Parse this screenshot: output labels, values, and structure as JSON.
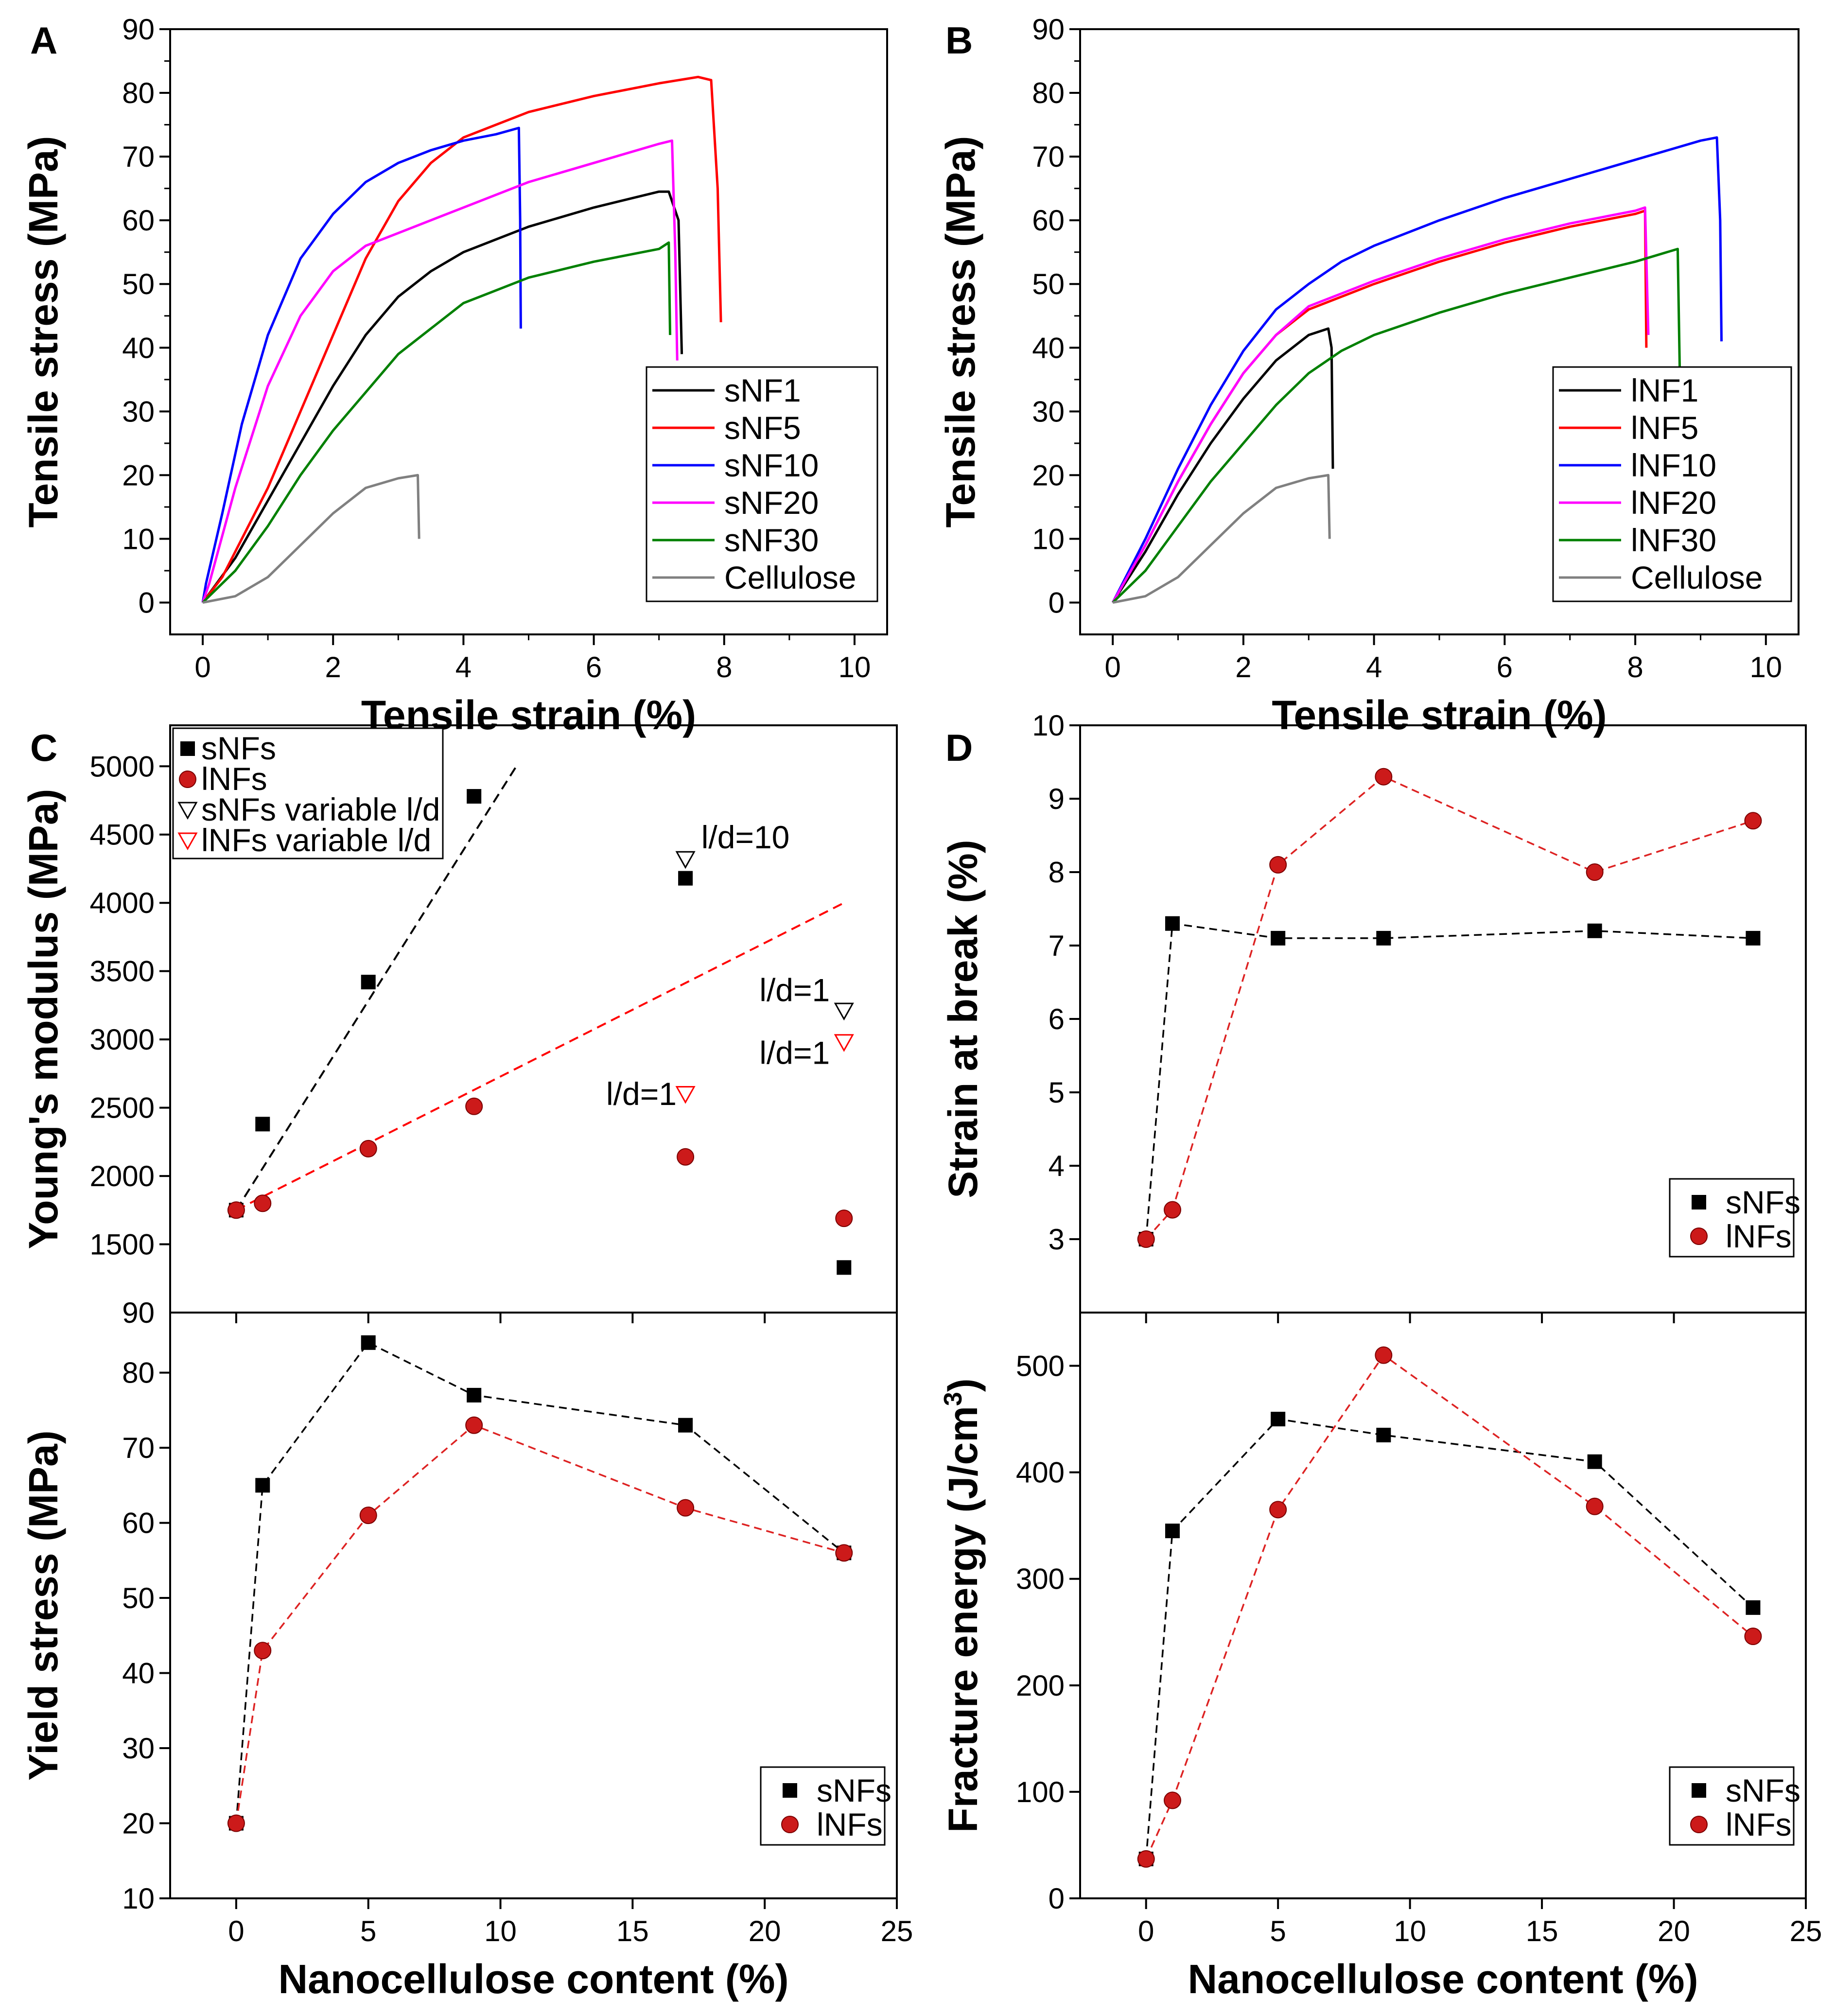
{
  "chart_data": [
    {
      "id": "A",
      "type": "line",
      "panel_label": "A",
      "xlabel": "Tensile strain (%)",
      "ylabel": "Tensile stress (MPa)",
      "xlim": [
        -0.5,
        10.5
      ],
      "ylim": [
        -5,
        90
      ],
      "xticks": [
        0,
        2,
        4,
        6,
        8,
        10
      ],
      "yticks": [
        0,
        10,
        20,
        30,
        40,
        50,
        60,
        70,
        80,
        90
      ],
      "legend_position": "bottom-right",
      "series": [
        {
          "name": "sNF1",
          "color": "#000000",
          "x": [
            0,
            0.5,
            1,
            1.5,
            2,
            2.5,
            3,
            3.5,
            4,
            5,
            6,
            7,
            7.15,
            7.3,
            7.35
          ],
          "y": [
            0,
            7,
            16,
            25,
            34,
            42,
            48,
            52,
            55,
            59,
            62,
            64.5,
            64.5,
            60,
            39
          ]
        },
        {
          "name": "sNF5",
          "color": "#ff0000",
          "x": [
            0,
            0.3,
            0.6,
            1,
            1.5,
            2,
            2.5,
            3,
            3.5,
            4,
            5,
            6,
            7,
            7.6,
            7.8,
            7.9,
            7.95
          ],
          "y": [
            0,
            4,
            10,
            18,
            30,
            42,
            54,
            63,
            69,
            73,
            77,
            79.5,
            81.5,
            82.5,
            82,
            65,
            44
          ]
        },
        {
          "name": "sNF10",
          "color": "#0000ff",
          "x": [
            0,
            0.05,
            0.3,
            0.6,
            1,
            1.5,
            2,
            2.5,
            3,
            3.5,
            4,
            4.5,
            4.85,
            4.87,
            4.88
          ],
          "y": [
            0,
            3,
            14,
            28,
            42,
            54,
            61,
            66,
            69,
            71,
            72.5,
            73.5,
            74.5,
            60,
            43
          ]
        },
        {
          "name": "sNF20",
          "color": "#ff00ff",
          "x": [
            0,
            0.1,
            0.5,
            1,
            1.5,
            2,
            2.5,
            3,
            4,
            5,
            6,
            7,
            7.2,
            7.25,
            7.28
          ],
          "y": [
            0,
            3,
            18,
            34,
            45,
            52,
            56,
            58,
            62,
            66,
            69,
            72,
            72.5,
            55,
            38
          ]
        },
        {
          "name": "sNF30",
          "color": "#008000",
          "x": [
            0,
            0.5,
            1,
            1.5,
            2,
            2.5,
            3,
            3.5,
            4,
            5,
            6,
            7,
            7.15,
            7.17
          ],
          "y": [
            0,
            5,
            12,
            20,
            27,
            33,
            39,
            43,
            47,
            51,
            53.5,
            55.5,
            56.5,
            42
          ]
        },
        {
          "name": "Cellulose",
          "color": "#808080",
          "x": [
            0,
            0.5,
            1,
            1.5,
            2,
            2.5,
            3,
            3.3,
            3.32
          ],
          "y": [
            0,
            1,
            4,
            9,
            14,
            18,
            19.5,
            20,
            10
          ]
        }
      ]
    },
    {
      "id": "B",
      "type": "line",
      "panel_label": "B",
      "xlabel": "Tensile strain (%)",
      "ylabel": "Tensile stress (MPa)",
      "xlim": [
        -0.5,
        10.5
      ],
      "ylim": [
        -5,
        90
      ],
      "xticks": [
        0,
        2,
        4,
        6,
        8,
        10
      ],
      "yticks": [
        0,
        10,
        20,
        30,
        40,
        50,
        60,
        70,
        80,
        90
      ],
      "legend_position": "bottom-right",
      "series": [
        {
          "name": "lNF1",
          "color": "#000000",
          "x": [
            0,
            0.5,
            1,
            1.5,
            2,
            2.5,
            3,
            3.3,
            3.35,
            3.37
          ],
          "y": [
            0,
            8,
            17,
            25,
            32,
            38,
            42,
            43,
            40,
            21
          ]
        },
        {
          "name": "lNF5",
          "color": "#ff0000",
          "x": [
            0,
            0.5,
            1,
            1.5,
            2,
            2.5,
            3,
            4,
            5,
            6,
            7,
            8,
            8.15,
            8.17
          ],
          "y": [
            0,
            9,
            19,
            28,
            36,
            42,
            46,
            50,
            53.5,
            56.5,
            59,
            61,
            61.5,
            40
          ]
        },
        {
          "name": "lNF10",
          "color": "#0000ff",
          "x": [
            0,
            0.5,
            1,
            1.5,
            2,
            2.5,
            3,
            3.5,
            4,
            5,
            6,
            7,
            8,
            9,
            9.25,
            9.3,
            9.32
          ],
          "y": [
            0,
            10,
            21,
            31,
            39.5,
            46,
            50,
            53.5,
            56,
            60,
            63.5,
            66.5,
            69.5,
            72.5,
            73,
            60,
            41
          ]
        },
        {
          "name": "lNF20",
          "color": "#ff00ff",
          "x": [
            0,
            0.5,
            1,
            1.5,
            2,
            2.5,
            3,
            4,
            5,
            6,
            7,
            8,
            8.15,
            8.2
          ],
          "y": [
            0,
            9,
            19,
            28,
            36,
            42,
            46.5,
            50.5,
            54,
            57,
            59.5,
            61.5,
            62,
            42
          ]
        },
        {
          "name": "lNF30",
          "color": "#008000",
          "x": [
            0,
            0.5,
            1,
            1.5,
            2,
            2.5,
            3,
            3.5,
            4,
            5,
            6,
            7,
            8,
            8.65,
            8.68
          ],
          "y": [
            0,
            5,
            12,
            19,
            25,
            31,
            36,
            39.5,
            42,
            45.5,
            48.5,
            51,
            53.5,
            55.5,
            37
          ]
        },
        {
          "name": "Cellulose",
          "color": "#808080",
          "x": [
            0,
            0.5,
            1,
            1.5,
            2,
            2.5,
            3,
            3.3,
            3.32
          ],
          "y": [
            0,
            1,
            4,
            9,
            14,
            18,
            19.5,
            20,
            10
          ]
        }
      ]
    },
    {
      "id": "C-top",
      "type": "scatter",
      "panel_label": "C",
      "xlabel": "",
      "ylabel": "Young's modulus (MPa)",
      "xlim": [
        -2.5,
        25
      ],
      "ylim": [
        1000,
        5300
      ],
      "yticks": [
        1500,
        2000,
        2500,
        3000,
        3500,
        4000,
        4500,
        5000
      ],
      "y_axis_bottom_label": "90",
      "legend_position": "top-left",
      "series": [
        {
          "name": "sNFs",
          "color": "#000000",
          "marker": "square",
          "x": [
            0,
            1,
            5,
            9,
            17,
            23
          ],
          "y": [
            1750,
            2380,
            3420,
            4780,
            4180,
            1330
          ]
        },
        {
          "name": "lNFs",
          "color": "#cc1a1a",
          "marker": "circle",
          "x": [
            0,
            1,
            5,
            9,
            17,
            23
          ],
          "y": [
            1750,
            1800,
            2200,
            2510,
            2140,
            1690
          ]
        },
        {
          "name": "sNFs variable l/d",
          "color": "#000000",
          "marker": "triangle-down-open",
          "x": [
            17,
            23
          ],
          "y": [
            4320,
            3210
          ]
        },
        {
          "name": "lNFs variable l/d",
          "color": "#ff0000",
          "marker": "triangle-down-open",
          "x": [
            17,
            23
          ],
          "y": [
            2600,
            2980
          ]
        }
      ],
      "fit_lines": [
        {
          "color": "#000000",
          "x": [
            0,
            10.6
          ],
          "y": [
            1750,
            5000
          ]
        },
        {
          "color": "#ff0000",
          "x": [
            0,
            23
          ],
          "y": [
            1750,
            4000
          ]
        }
      ],
      "annotations": [
        {
          "text": "l/d=10",
          "x": 17.6,
          "y": 4400
        },
        {
          "text": "l/d=1",
          "x": 19.8,
          "y": 3280
        },
        {
          "text": "l/d=1",
          "x": 19.8,
          "y": 2820
        },
        {
          "text": "l/d=1",
          "x": 14.0,
          "y": 2520
        }
      ]
    },
    {
      "id": "C-bottom",
      "type": "scatter",
      "xlabel": "Nanocellulose content (%)",
      "ylabel": "Yield stress (MPa)",
      "xlim": [
        -2.5,
        25
      ],
      "ylim": [
        10,
        88
      ],
      "xticks": [
        0,
        5,
        10,
        15,
        20,
        25
      ],
      "yticks": [
        10,
        20,
        30,
        40,
        50,
        60,
        70,
        80
      ],
      "legend_position": "bottom-right",
      "series": [
        {
          "name": "sNFs",
          "color": "#000000",
          "marker": "square",
          "x": [
            0,
            1,
            5,
            9,
            17,
            23
          ],
          "y": [
            20,
            65,
            84,
            77,
            73,
            56
          ]
        },
        {
          "name": "lNFs",
          "color": "#cc1a1a",
          "marker": "circle",
          "x": [
            0,
            1,
            5,
            9,
            17,
            23
          ],
          "y": [
            20,
            43,
            61,
            73,
            62,
            56
          ]
        }
      ]
    },
    {
      "id": "D-top",
      "type": "scatter",
      "panel_label": "D",
      "xlabel": "",
      "ylabel": "Strain at break (%)",
      "xlim": [
        -2.5,
        25
      ],
      "ylim": [
        2,
        10
      ],
      "yticks": [
        3,
        4,
        5,
        6,
        7,
        8,
        9,
        10
      ],
      "legend_position": "bottom-right",
      "series": [
        {
          "name": "sNFs",
          "color": "#000000",
          "marker": "square",
          "x": [
            0,
            1,
            5,
            9,
            17,
            23
          ],
          "y": [
            3,
            7.3,
            7.1,
            7.1,
            7.2,
            7.1
          ]
        },
        {
          "name": "lNFs",
          "color": "#cc1a1a",
          "marker": "circle",
          "x": [
            0,
            1,
            5,
            9,
            17,
            23
          ],
          "y": [
            3,
            3.4,
            8.1,
            9.3,
            8,
            8.7
          ]
        }
      ]
    },
    {
      "id": "D-bottom",
      "type": "scatter",
      "xlabel": "Nanocellulose content (%)",
      "ylabel": "Fracture energy (J/cm",
      "ylabel_superscript": "3",
      "ylabel_close": ")",
      "xlim": [
        -2.5,
        25
      ],
      "ylim": [
        0,
        550
      ],
      "xticks": [
        0,
        5,
        10,
        15,
        20,
        25
      ],
      "yticks": [
        0,
        100,
        200,
        300,
        400,
        500
      ],
      "legend_position": "bottom-right",
      "series": [
        {
          "name": "sNFs",
          "color": "#000000",
          "marker": "square",
          "x": [
            0,
            1,
            5,
            9,
            17,
            23
          ],
          "y": [
            37,
            345,
            450,
            435,
            410,
            273
          ]
        },
        {
          "name": "lNFs",
          "color": "#cc1a1a",
          "marker": "circle",
          "x": [
            0,
            1,
            5,
            9,
            17,
            23
          ],
          "y": [
            37,
            92,
            365,
            510,
            368,
            246
          ]
        }
      ]
    }
  ],
  "legends": {
    "A": [
      "sNF1",
      "sNF5",
      "sNF10",
      "sNF20",
      "sNF30",
      "Cellulose"
    ],
    "B": [
      "lNF1",
      "lNF5",
      "lNF10",
      "lNF20",
      "lNF30",
      "Cellulose"
    ]
  }
}
